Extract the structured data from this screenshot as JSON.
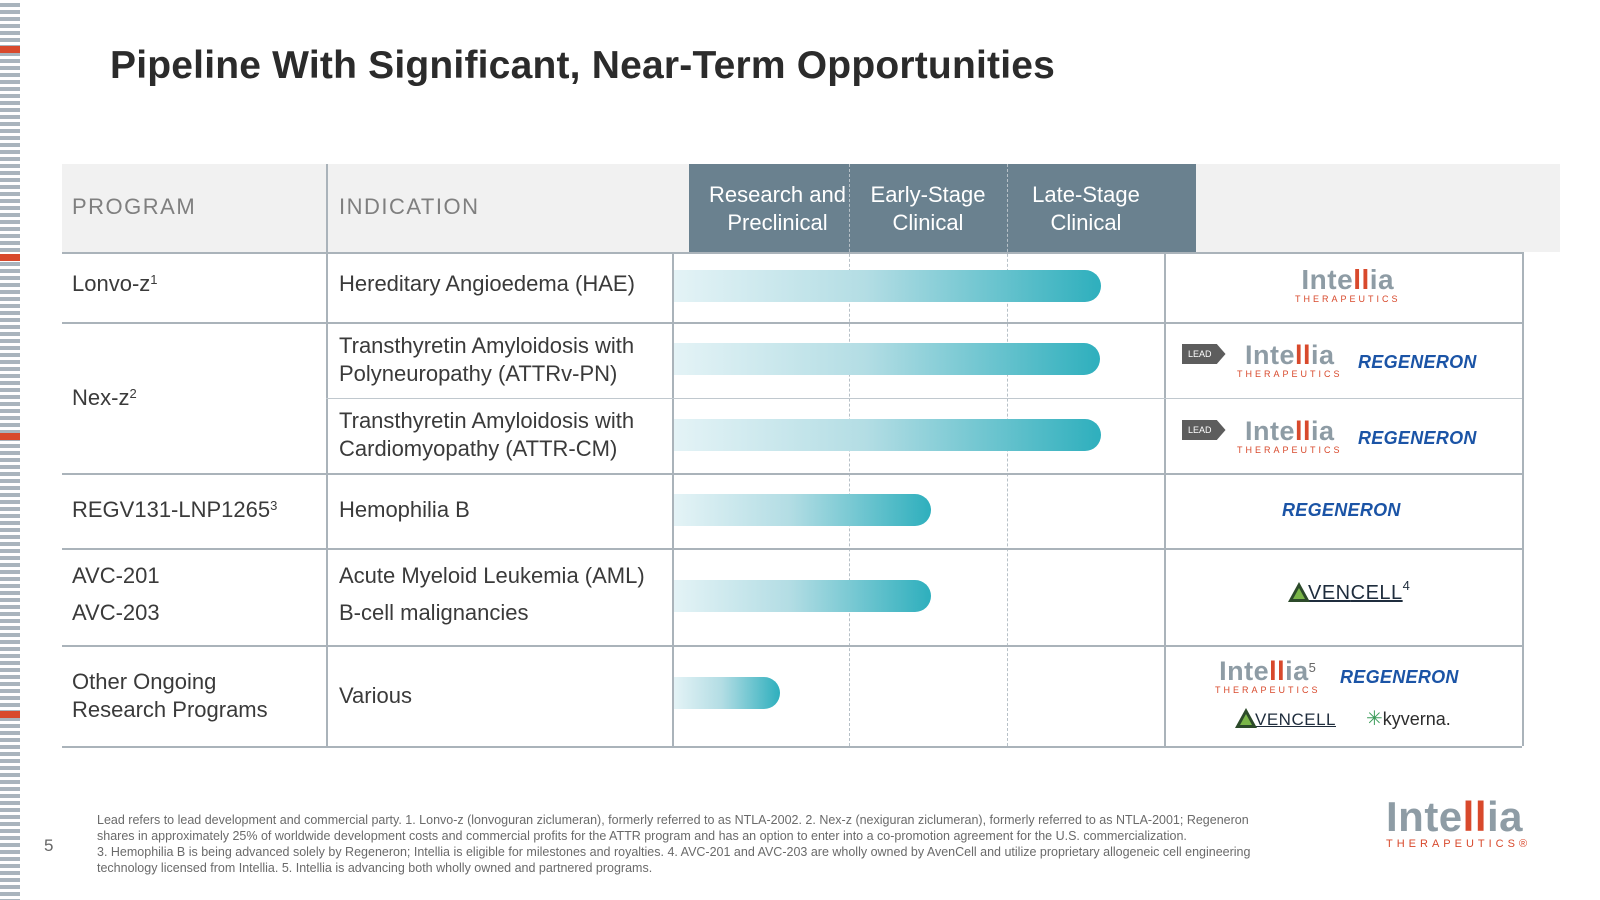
{
  "title": "Pipeline With Significant, Near-Term Opportunities",
  "headers": {
    "program": "PROGRAM",
    "indication": "INDICATION",
    "stages": [
      {
        "line1": "Research and",
        "line2": "Preclinical"
      },
      {
        "line1": "Early-Stage",
        "line2": "Clinical"
      },
      {
        "line1": "Late-Stage",
        "line2": "Clinical"
      }
    ]
  },
  "rows": [
    {
      "program": "Lonvo-z",
      "program_sup": "1",
      "indication": "Hereditary Angioedema (HAE)",
      "progress_stage": 2.7
    },
    {
      "program": "Nex-z",
      "program_sup": "2",
      "indication_line1": "Transthyretin Amyloidosis with",
      "indication_line2": "Polyneuropathy (ATTRv-PN)",
      "progress_stage": 2.7
    },
    {
      "indication_line1": "Transthyretin Amyloidosis with",
      "indication_line2": "Cardiomyopathy (ATTR-CM)",
      "progress_stage": 2.7
    },
    {
      "program": "REGV131-LNP1265",
      "program_sup": "3",
      "indication": "Hemophilia B",
      "progress_stage": 1.6
    },
    {
      "program_line1": "AVC-201",
      "program_line2": "AVC-203",
      "indication_line1": "Acute Myeloid Leukemia (AML)",
      "indication_line2": "B-cell malignancies",
      "progress_stage": 1.6
    },
    {
      "program_line1": "Other Ongoing",
      "program_line2": "Research Programs",
      "indication": "Various",
      "progress_stage": 0.6
    }
  ],
  "partners": {
    "intellia_name_a": "Inte",
    "intellia_name_b": "ll",
    "intellia_name_c": "ia",
    "intellia_sub": "THERAPEUTICS",
    "regeneron": "REGENERON",
    "lead": "LEAD",
    "avencell_a": "VEN",
    "avencell_b": "CELL",
    "avencell_sup": "4",
    "intellia_sup": "5",
    "kyverna": "kyverna."
  },
  "footnote_lines": [
    "Lead refers to lead development and commercial party. 1. Lonvo-z (lonvoguran ziclumeran), formerly referred to as NTLA-2002. 2. Nex-z (nexiguran ziclumeran), formerly referred to as NTLA-2001; Regeneron",
    "shares in approximately 25% of worldwide development costs and commercial profits for the ATTR program and has an option to enter into a co-promotion agreement for the U.S. commercialization.",
    "3. Hemophilia B is being advanced solely by Regeneron; Intellia is eligible for milestones and royalties. 4. AVC-201 and AVC-203 are wholly owned by AvenCell and utilize proprietary allogeneic cell engineering",
    "technology licensed from Intellia. 5. Intellia is advancing both wholly owned and partnered programs."
  ],
  "page_number": "5",
  "corner_logo": {
    "a": "Inte",
    "b": "ll",
    "c": "ia",
    "sub": "THERAPEUTICS",
    "mark": "®"
  },
  "colors": {
    "accent": "#d8492c",
    "stage_header": "#6a818f",
    "bar_end": "#2eafbd",
    "regeneron": "#1b54a6"
  }
}
